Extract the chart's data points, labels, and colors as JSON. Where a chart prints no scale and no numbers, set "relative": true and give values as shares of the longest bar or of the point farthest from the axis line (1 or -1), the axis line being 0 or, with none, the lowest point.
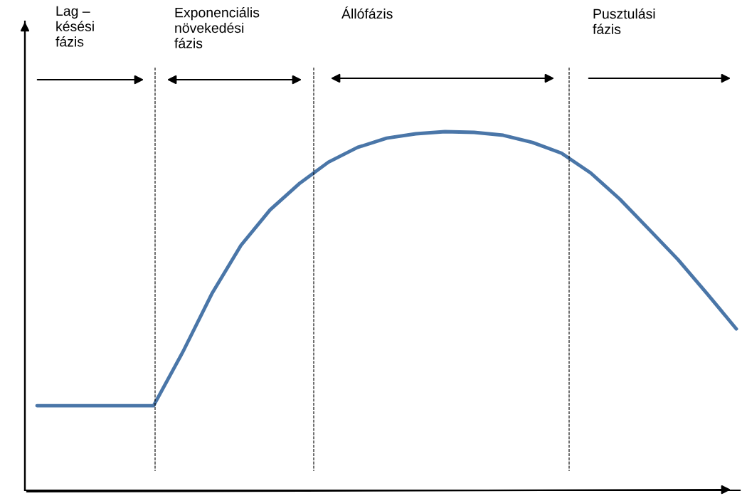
{
  "chart_data": {
    "type": "line",
    "relative": true,
    "categories": [
      null,
      null,
      null,
      null,
      null,
      null,
      null,
      null,
      null,
      null,
      null,
      null,
      null,
      null,
      null,
      null,
      null,
      null,
      null,
      null,
      null,
      null,
      null,
      null,
      null
    ],
    "series": [
      {
        "color": "#4a76a8",
        "values": [
          0.236,
          0.236,
          0.236,
          0.236,
          0.236,
          0.385,
          0.548,
          0.683,
          0.782,
          0.855,
          0.915,
          0.956,
          0.982,
          0.994,
          1,
          0.998,
          0.99,
          0.97,
          0.94,
          0.885,
          0.812,
          0.728,
          0.643,
          0.548,
          0.45
        ]
      }
    ],
    "annotations": [
      "Lag –\nkésési\nfázis",
      "Exponenciális\nnövekedési\nfázis",
      "Állófázis",
      "Pusztulási\nfázis"
    ],
    "legend": false,
    "marker": "none",
    "line_style": "solid",
    "tick_labels": false
  }
}
